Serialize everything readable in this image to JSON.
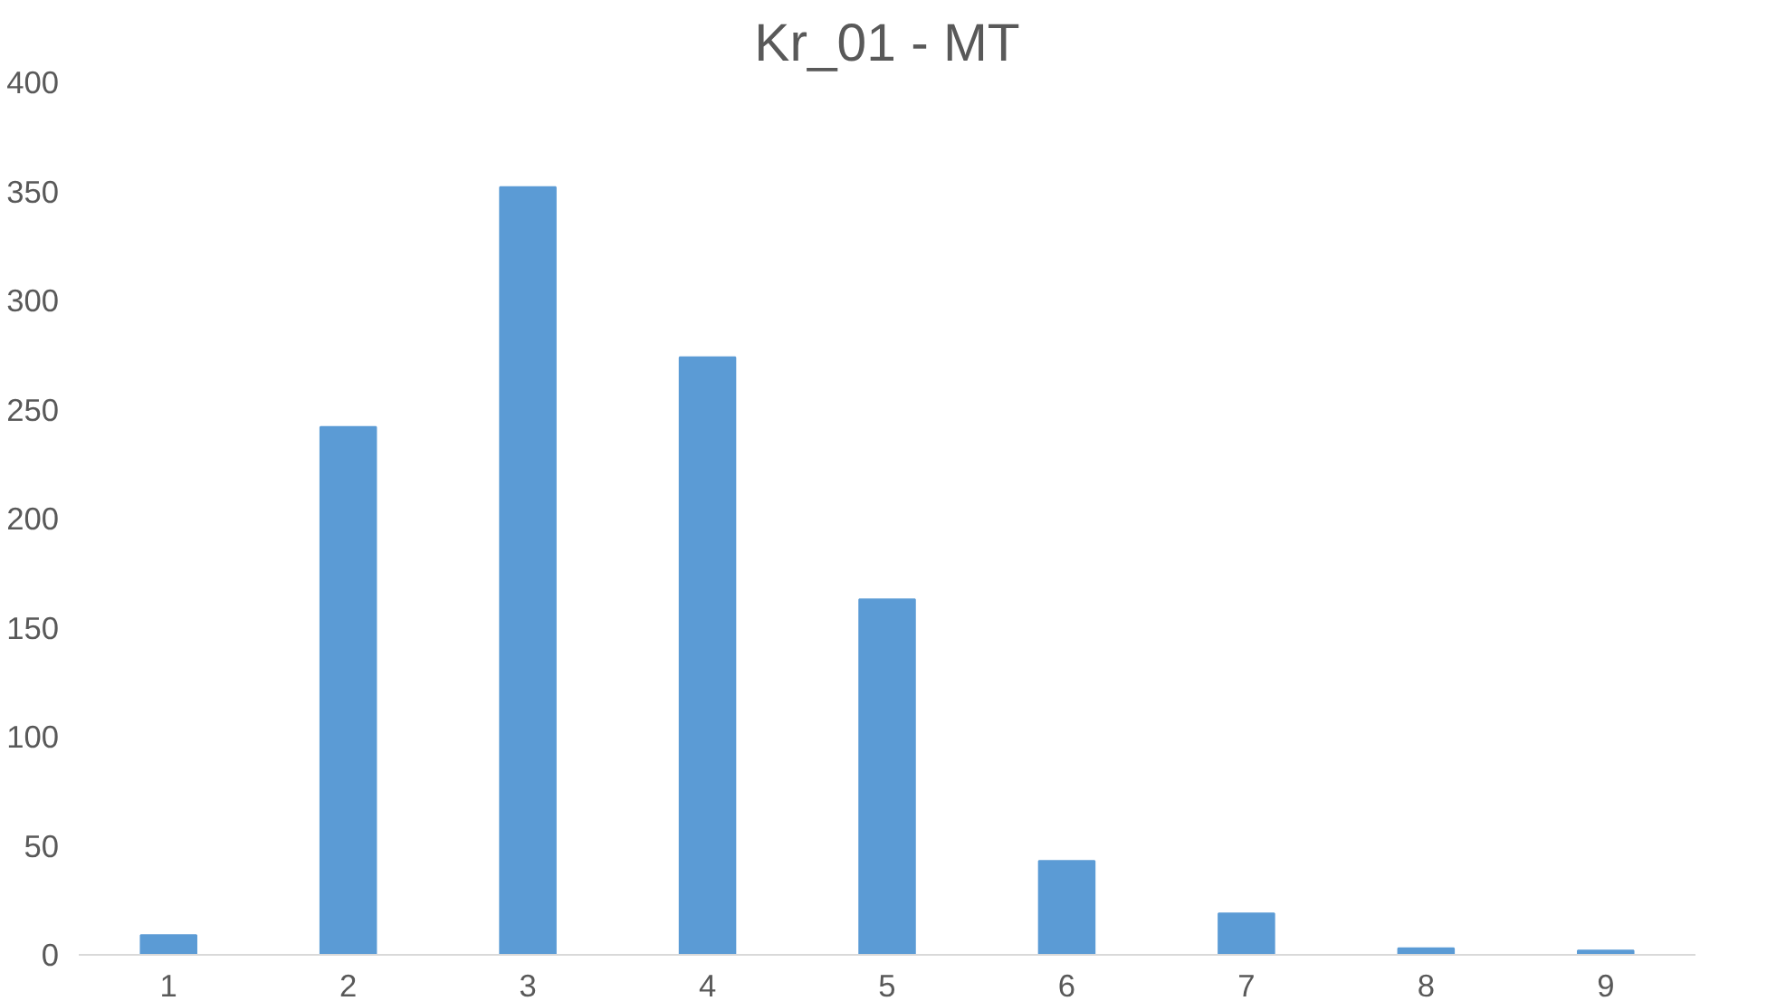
{
  "chart_data": {
    "type": "bar",
    "title": "Kr_01 - MT",
    "categories": [
      "1",
      "2",
      "3",
      "4",
      "5",
      "6",
      "7",
      "8",
      "9"
    ],
    "values": [
      9,
      242,
      352,
      274,
      163,
      43,
      19,
      3,
      2
    ],
    "color": "#5b9bd5",
    "ylim": [
      0,
      400
    ],
    "yticks": [
      0,
      50,
      100,
      150,
      200,
      250,
      300,
      350,
      400
    ],
    "grid": false
  }
}
